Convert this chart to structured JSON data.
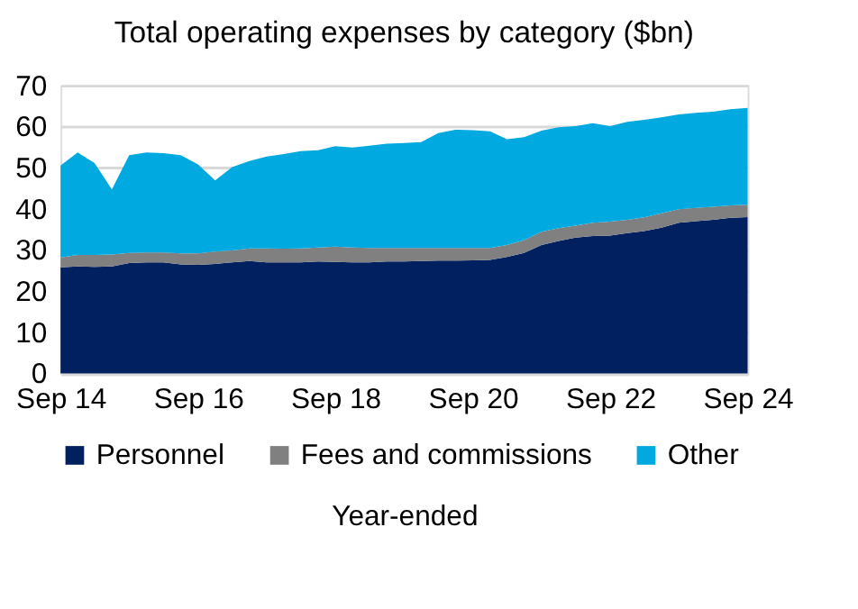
{
  "chart_data": {
    "type": "area",
    "title": "Total operating expenses by category ($bn)",
    "xlabel": "Year-ended",
    "stacked": true,
    "x": [
      "2014-09",
      "2014-12",
      "2015-03",
      "2015-06",
      "2015-09",
      "2015-12",
      "2016-03",
      "2016-06",
      "2016-09",
      "2016-12",
      "2017-03",
      "2017-06",
      "2017-09",
      "2017-12",
      "2018-03",
      "2018-06",
      "2018-09",
      "2018-12",
      "2019-03",
      "2019-06",
      "2019-09",
      "2019-12",
      "2020-03",
      "2020-06",
      "2020-09",
      "2020-12",
      "2021-03",
      "2021-06",
      "2021-09",
      "2021-12",
      "2022-03",
      "2022-06",
      "2022-09",
      "2022-12",
      "2023-03",
      "2023-06",
      "2023-09",
      "2023-12",
      "2024-03",
      "2024-06",
      "2024-09"
    ],
    "series": [
      {
        "name": "Personnel",
        "color": "#002060",
        "values": [
          25.8,
          26.0,
          25.9,
          26.0,
          26.8,
          27.0,
          27.0,
          26.5,
          26.4,
          26.6,
          27.0,
          27.3,
          27.0,
          27.0,
          27.0,
          27.2,
          27.1,
          27.0,
          27.0,
          27.2,
          27.2,
          27.3,
          27.4,
          27.4,
          27.5,
          27.6,
          28.3,
          29.3,
          31.2,
          32.2,
          33.0,
          33.4,
          33.5,
          34.1,
          34.6,
          35.4,
          36.6,
          37.0,
          37.3,
          37.8,
          38.0
        ]
      },
      {
        "name": "Fees and commissions",
        "color": "#808080",
        "values": [
          2.4,
          2.8,
          2.9,
          2.9,
          2.5,
          2.4,
          2.4,
          2.7,
          2.8,
          3.0,
          2.9,
          3.1,
          3.4,
          3.3,
          3.4,
          3.4,
          3.7,
          3.6,
          3.5,
          3.3,
          3.3,
          3.2,
          3.1,
          3.1,
          3.0,
          2.9,
          2.9,
          3.1,
          3.2,
          3.1,
          2.9,
          3.2,
          3.4,
          3.2,
          3.3,
          3.5,
          3.3,
          3.2,
          3.2,
          3.0,
          3.0
        ]
      },
      {
        "name": "Other",
        "color": "#00a9e0",
        "values": [
          22.3,
          24.9,
          22.3,
          15.8,
          23.7,
          24.3,
          24.1,
          23.8,
          21.6,
          17.3,
          20.2,
          21.2,
          22.3,
          23.0,
          23.6,
          23.6,
          24.4,
          24.3,
          24.8,
          25.3,
          25.5,
          25.7,
          27.9,
          28.7,
          28.6,
          28.3,
          25.7,
          25.0,
          24.6,
          24.5,
          24.2,
          24.2,
          23.2,
          23.8,
          23.7,
          23.3,
          23.0,
          23.1,
          23.1,
          23.4,
          23.5
        ]
      }
    ],
    "xlim": [
      "2014-09",
      "2024-09"
    ],
    "xticks": [
      {
        "value": "2014-09",
        "label": "Sep 14"
      },
      {
        "value": "2016-09",
        "label": "Sep 16"
      },
      {
        "value": "2018-09",
        "label": "Sep 18"
      },
      {
        "value": "2020-09",
        "label": "Sep 20"
      },
      {
        "value": "2022-09",
        "label": "Sep 22"
      },
      {
        "value": "2024-09",
        "label": "Sep 24"
      }
    ],
    "ylim": [
      0,
      70
    ],
    "yticks": [
      0,
      10,
      20,
      30,
      40,
      50,
      60,
      70
    ],
    "grid": "y",
    "legend": "bottom"
  }
}
